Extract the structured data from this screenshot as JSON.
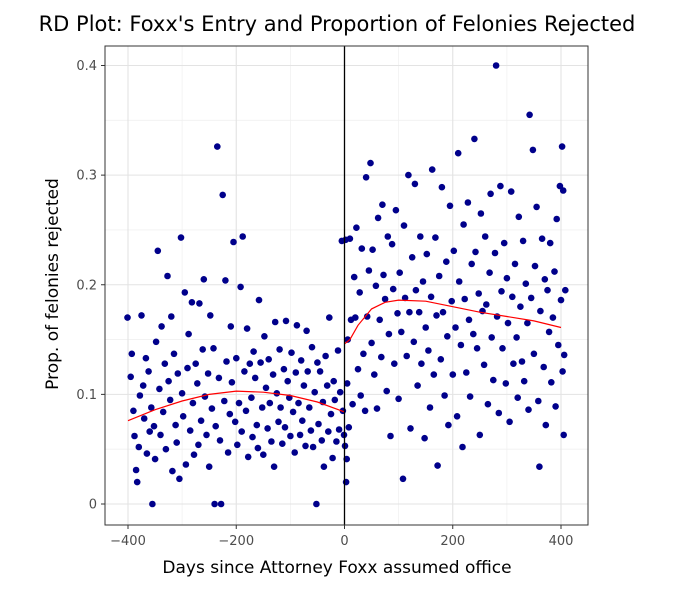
{
  "chart_data": {
    "type": "scatter",
    "title": "RD Plot: Foxx's Entry and Proportion of Felonies Rejected",
    "xlabel": "Days since Attorney Foxx assumed office",
    "ylabel": "Prop. of felonies rejected",
    "xlim": [
      -400,
      400
    ],
    "ylim": [
      0,
      0.4
    ],
    "x_ticks": [
      -400,
      -200,
      0,
      200,
      400
    ],
    "x_tick_labels": [
      "−400",
      "−200",
      "0",
      "200",
      "400"
    ],
    "y_ticks": [
      0,
      0.1,
      0.2,
      0.3,
      0.4
    ],
    "y_tick_labels": [
      "0",
      "0.1",
      "0.2",
      "0.3",
      "0.4"
    ],
    "grid": true,
    "cutoff_line": {
      "x": 0,
      "color": "#000000"
    },
    "point_color": "#00008B",
    "fit_color": "#FF0000",
    "points": [
      [
        -401,
        0.17
      ],
      [
        -395,
        0.116
      ],
      [
        -393,
        0.137
      ],
      [
        -390,
        0.085
      ],
      [
        -388,
        0.062
      ],
      [
        -385,
        0.031
      ],
      [
        -383,
        0.02
      ],
      [
        -380,
        0.052
      ],
      [
        -378,
        0.099
      ],
      [
        -375,
        0.172
      ],
      [
        -372,
        0.108
      ],
      [
        -370,
        0.078
      ],
      [
        -367,
        0.133
      ],
      [
        -365,
        0.046
      ],
      [
        -362,
        0.121
      ],
      [
        -360,
        0.066
      ],
      [
        -357,
        0.088
      ],
      [
        -355,
        0.0
      ],
      [
        -352,
        0.071
      ],
      [
        -350,
        0.041
      ],
      [
        -348,
        0.148
      ],
      [
        -345,
        0.231
      ],
      [
        -342,
        0.105
      ],
      [
        -340,
        0.063
      ],
      [
        -338,
        0.162
      ],
      [
        -335,
        0.084
      ],
      [
        -332,
        0.128
      ],
      [
        -330,
        0.05
      ],
      [
        -327,
        0.208
      ],
      [
        -325,
        0.112
      ],
      [
        -322,
        0.095
      ],
      [
        -320,
        0.171
      ],
      [
        -318,
        0.03
      ],
      [
        -315,
        0.137
      ],
      [
        -312,
        0.072
      ],
      [
        -310,
        0.056
      ],
      [
        -308,
        0.119
      ],
      [
        -305,
        0.023
      ],
      [
        -302,
        0.243
      ],
      [
        -300,
        0.101
      ],
      [
        -298,
        0.08
      ],
      [
        -295,
        0.193
      ],
      [
        -293,
        0.036
      ],
      [
        -290,
        0.124
      ],
      [
        -288,
        0.155
      ],
      [
        -285,
        0.067
      ],
      [
        -282,
        0.184
      ],
      [
        -280,
        0.092
      ],
      [
        -278,
        0.045
      ],
      [
        -275,
        0.128
      ],
      [
        -272,
        0.11
      ],
      [
        -270,
        0.054
      ],
      [
        -268,
        0.183
      ],
      [
        -265,
        0.076
      ],
      [
        -262,
        0.141
      ],
      [
        -260,
        0.205
      ],
      [
        -258,
        0.098
      ],
      [
        -255,
        0.063
      ],
      [
        -252,
        0.119
      ],
      [
        -250,
        0.034
      ],
      [
        -248,
        0.172
      ],
      [
        -245,
        0.087
      ],
      [
        -242,
        0.142
      ],
      [
        -240,
        0.0
      ],
      [
        -238,
        0.071
      ],
      [
        -235,
        0.326
      ],
      [
        -232,
        0.115
      ],
      [
        -230,
        0.058
      ],
      [
        -228,
        0.0
      ],
      [
        -225,
        0.282
      ],
      [
        -222,
        0.094
      ],
      [
        -220,
        0.204
      ],
      [
        -218,
        0.13
      ],
      [
        -215,
        0.047
      ],
      [
        -212,
        0.082
      ],
      [
        -210,
        0.162
      ],
      [
        -208,
        0.111
      ],
      [
        -205,
        0.239
      ],
      [
        -202,
        0.075
      ],
      [
        -200,
        0.133
      ],
      [
        -198,
        0.054
      ],
      [
        -195,
        0.092
      ],
      [
        -192,
        0.198
      ],
      [
        -190,
        0.066
      ],
      [
        -188,
        0.244
      ],
      [
        -185,
        0.121
      ],
      [
        -182,
        0.085
      ],
      [
        -180,
        0.16
      ],
      [
        -178,
        0.043
      ],
      [
        -175,
        0.128
      ],
      [
        -172,
        0.097
      ],
      [
        -170,
        0.061
      ],
      [
        -168,
        0.139
      ],
      [
        -165,
        0.115
      ],
      [
        -162,
        0.072
      ],
      [
        -160,
        0.051
      ],
      [
        -158,
        0.186
      ],
      [
        -155,
        0.129
      ],
      [
        -152,
        0.088
      ],
      [
        -150,
        0.045
      ],
      [
        -148,
        0.153
      ],
      [
        -145,
        0.106
      ],
      [
        -142,
        0.069
      ],
      [
        -140,
        0.132
      ],
      [
        -138,
        0.092
      ],
      [
        -135,
        0.057
      ],
      [
        -132,
        0.118
      ],
      [
        -130,
        0.034
      ],
      [
        -128,
        0.166
      ],
      [
        -125,
        0.101
      ],
      [
        -122,
        0.075
      ],
      [
        -120,
        0.141
      ],
      [
        -118,
        0.088
      ],
      [
        -115,
        0.055
      ],
      [
        -112,
        0.123
      ],
      [
        -110,
        0.07
      ],
      [
        -108,
        0.167
      ],
      [
        -105,
        0.112
      ],
      [
        -102,
        0.097
      ],
      [
        -100,
        0.062
      ],
      [
        -98,
        0.138
      ],
      [
        -95,
        0.084
      ],
      [
        -92,
        0.047
      ],
      [
        -90,
        0.12
      ],
      [
        -88,
        0.163
      ],
      [
        -85,
        0.092
      ],
      [
        -82,
        0.063
      ],
      [
        -80,
        0.131
      ],
      [
        -78,
        0.076
      ],
      [
        -75,
        0.108
      ],
      [
        -72,
        0.053
      ],
      [
        -70,
        0.158
      ],
      [
        -68,
        0.121
      ],
      [
        -65,
        0.088
      ],
      [
        -62,
        0.067
      ],
      [
        -60,
        0.143
      ],
      [
        -58,
        0.052
      ],
      [
        -55,
        0.102
      ],
      [
        -52,
        0.0
      ],
      [
        -50,
        0.129
      ],
      [
        -48,
        0.073
      ],
      [
        -45,
        0.121
      ],
      [
        -42,
        0.058
      ],
      [
        -40,
        0.093
      ],
      [
        -38,
        0.034
      ],
      [
        -35,
        0.135
      ],
      [
        -32,
        0.108
      ],
      [
        -30,
        0.066
      ],
      [
        -28,
        0.17
      ],
      [
        -25,
        0.082
      ],
      [
        -22,
        0.042
      ],
      [
        -20,
        0.112
      ],
      [
        -18,
        0.095
      ],
      [
        -15,
        0.057
      ],
      [
        -12,
        0.14
      ],
      [
        -10,
        0.068
      ],
      [
        -8,
        0.102
      ],
      [
        -5,
        0.24
      ],
      [
        -3,
        0.085
      ],
      [
        -1,
        0.063
      ],
      [
        1,
        0.053
      ],
      [
        2,
        0.241
      ],
      [
        3,
        0.02
      ],
      [
        4,
        0.041
      ],
      [
        5,
        0.11
      ],
      [
        6,
        0.15
      ],
      [
        8,
        0.07
      ],
      [
        10,
        0.242
      ],
      [
        12,
        0.168
      ],
      [
        15,
        0.091
      ],
      [
        18,
        0.207
      ],
      [
        20,
        0.17
      ],
      [
        22,
        0.252
      ],
      [
        25,
        0.123
      ],
      [
        28,
        0.193
      ],
      [
        30,
        0.099
      ],
      [
        32,
        0.233
      ],
      [
        35,
        0.137
      ],
      [
        38,
        0.085
      ],
      [
        40,
        0.298
      ],
      [
        42,
        0.171
      ],
      [
        45,
        0.213
      ],
      [
        48,
        0.311
      ],
      [
        50,
        0.147
      ],
      [
        52,
        0.232
      ],
      [
        55,
        0.118
      ],
      [
        58,
        0.199
      ],
      [
        60,
        0.087
      ],
      [
        62,
        0.261
      ],
      [
        65,
        0.168
      ],
      [
        68,
        0.134
      ],
      [
        70,
        0.273
      ],
      [
        72,
        0.209
      ],
      [
        75,
        0.187
      ],
      [
        78,
        0.103
      ],
      [
        80,
        0.244
      ],
      [
        82,
        0.155
      ],
      [
        85,
        0.062
      ],
      [
        88,
        0.237
      ],
      [
        90,
        0.196
      ],
      [
        92,
        0.128
      ],
      [
        95,
        0.268
      ],
      [
        98,
        0.174
      ],
      [
        100,
        0.096
      ],
      [
        102,
        0.211
      ],
      [
        105,
        0.157
      ],
      [
        108,
        0.023
      ],
      [
        110,
        0.254
      ],
      [
        112,
        0.188
      ],
      [
        115,
        0.135
      ],
      [
        118,
        0.3
      ],
      [
        120,
        0.175
      ],
      [
        122,
        0.069
      ],
      [
        125,
        0.225
      ],
      [
        128,
        0.148
      ],
      [
        130,
        0.292
      ],
      [
        132,
        0.195
      ],
      [
        135,
        0.108
      ],
      [
        138,
        0.175
      ],
      [
        140,
        0.244
      ],
      [
        142,
        0.128
      ],
      [
        145,
        0.203
      ],
      [
        148,
        0.06
      ],
      [
        150,
        0.161
      ],
      [
        152,
        0.228
      ],
      [
        155,
        0.14
      ],
      [
        158,
        0.088
      ],
      [
        160,
        0.189
      ],
      [
        162,
        0.305
      ],
      [
        165,
        0.118
      ],
      [
        168,
        0.243
      ],
      [
        170,
        0.172
      ],
      [
        172,
        0.035
      ],
      [
        175,
        0.208
      ],
      [
        178,
        0.132
      ],
      [
        180,
        0.289
      ],
      [
        182,
        0.175
      ],
      [
        185,
        0.099
      ],
      [
        188,
        0.221
      ],
      [
        190,
        0.153
      ],
      [
        192,
        0.072
      ],
      [
        195,
        0.272
      ],
      [
        198,
        0.185
      ],
      [
        200,
        0.118
      ],
      [
        202,
        0.231
      ],
      [
        205,
        0.161
      ],
      [
        208,
        0.08
      ],
      [
        210,
        0.32
      ],
      [
        212,
        0.203
      ],
      [
        215,
        0.145
      ],
      [
        218,
        0.052
      ],
      [
        220,
        0.255
      ],
      [
        222,
        0.187
      ],
      [
        225,
        0.12
      ],
      [
        228,
        0.275
      ],
      [
        230,
        0.168
      ],
      [
        232,
        0.098
      ],
      [
        235,
        0.219
      ],
      [
        238,
        0.155
      ],
      [
        240,
        0.333
      ],
      [
        242,
        0.23
      ],
      [
        245,
        0.142
      ],
      [
        248,
        0.192
      ],
      [
        250,
        0.063
      ],
      [
        252,
        0.265
      ],
      [
        255,
        0.176
      ],
      [
        258,
        0.127
      ],
      [
        260,
        0.244
      ],
      [
        262,
        0.182
      ],
      [
        265,
        0.091
      ],
      [
        268,
        0.211
      ],
      [
        270,
        0.283
      ],
      [
        272,
        0.152
      ],
      [
        275,
        0.113
      ],
      [
        278,
        0.229
      ],
      [
        280,
        0.4
      ],
      [
        282,
        0.171
      ],
      [
        285,
        0.083
      ],
      [
        288,
        0.29
      ],
      [
        290,
        0.194
      ],
      [
        292,
        0.142
      ],
      [
        295,
        0.238
      ],
      [
        298,
        0.11
      ],
      [
        300,
        0.206
      ],
      [
        302,
        0.165
      ],
      [
        305,
        0.075
      ],
      [
        308,
        0.285
      ],
      [
        310,
        0.189
      ],
      [
        312,
        0.128
      ],
      [
        315,
        0.219
      ],
      [
        318,
        0.152
      ],
      [
        320,
        0.097
      ],
      [
        322,
        0.262
      ],
      [
        325,
        0.18
      ],
      [
        328,
        0.13
      ],
      [
        330,
        0.24
      ],
      [
        332,
        0.112
      ],
      [
        335,
        0.201
      ],
      [
        338,
        0.165
      ],
      [
        340,
        0.086
      ],
      [
        342,
        0.355
      ],
      [
        345,
        0.188
      ],
      [
        348,
        0.323
      ],
      [
        350,
        0.137
      ],
      [
        352,
        0.217
      ],
      [
        355,
        0.271
      ],
      [
        358,
        0.094
      ],
      [
        360,
        0.034
      ],
      [
        362,
        0.176
      ],
      [
        365,
        0.242
      ],
      [
        368,
        0.125
      ],
      [
        370,
        0.205
      ],
      [
        372,
        0.072
      ],
      [
        375,
        0.195
      ],
      [
        378,
        0.157
      ],
      [
        380,
        0.238
      ],
      [
        382,
        0.111
      ],
      [
        385,
        0.17
      ],
      [
        388,
        0.212
      ],
      [
        390,
        0.089
      ],
      [
        392,
        0.26
      ],
      [
        395,
        0.145
      ],
      [
        398,
        0.29
      ],
      [
        400,
        0.186
      ],
      [
        402,
        0.326
      ],
      [
        403,
        0.121
      ],
      [
        404,
        0.286
      ],
      [
        405,
        0.063
      ],
      [
        406,
        0.136
      ],
      [
        408,
        0.195
      ]
    ],
    "fit_left": [
      [
        -400,
        0.076
      ],
      [
        -350,
        0.086
      ],
      [
        -300,
        0.094
      ],
      [
        -250,
        0.1
      ],
      [
        -200,
        0.103
      ],
      [
        -150,
        0.102
      ],
      [
        -100,
        0.099
      ],
      [
        -50,
        0.093
      ],
      [
        0,
        0.084
      ]
    ],
    "fit_right": [
      [
        0,
        0.146
      ],
      [
        10,
        0.15
      ],
      [
        25,
        0.163
      ],
      [
        50,
        0.178
      ],
      [
        75,
        0.184
      ],
      [
        100,
        0.186
      ],
      [
        150,
        0.185
      ],
      [
        200,
        0.18
      ],
      [
        250,
        0.175
      ],
      [
        300,
        0.171
      ],
      [
        350,
        0.167
      ],
      [
        400,
        0.161
      ]
    ]
  }
}
